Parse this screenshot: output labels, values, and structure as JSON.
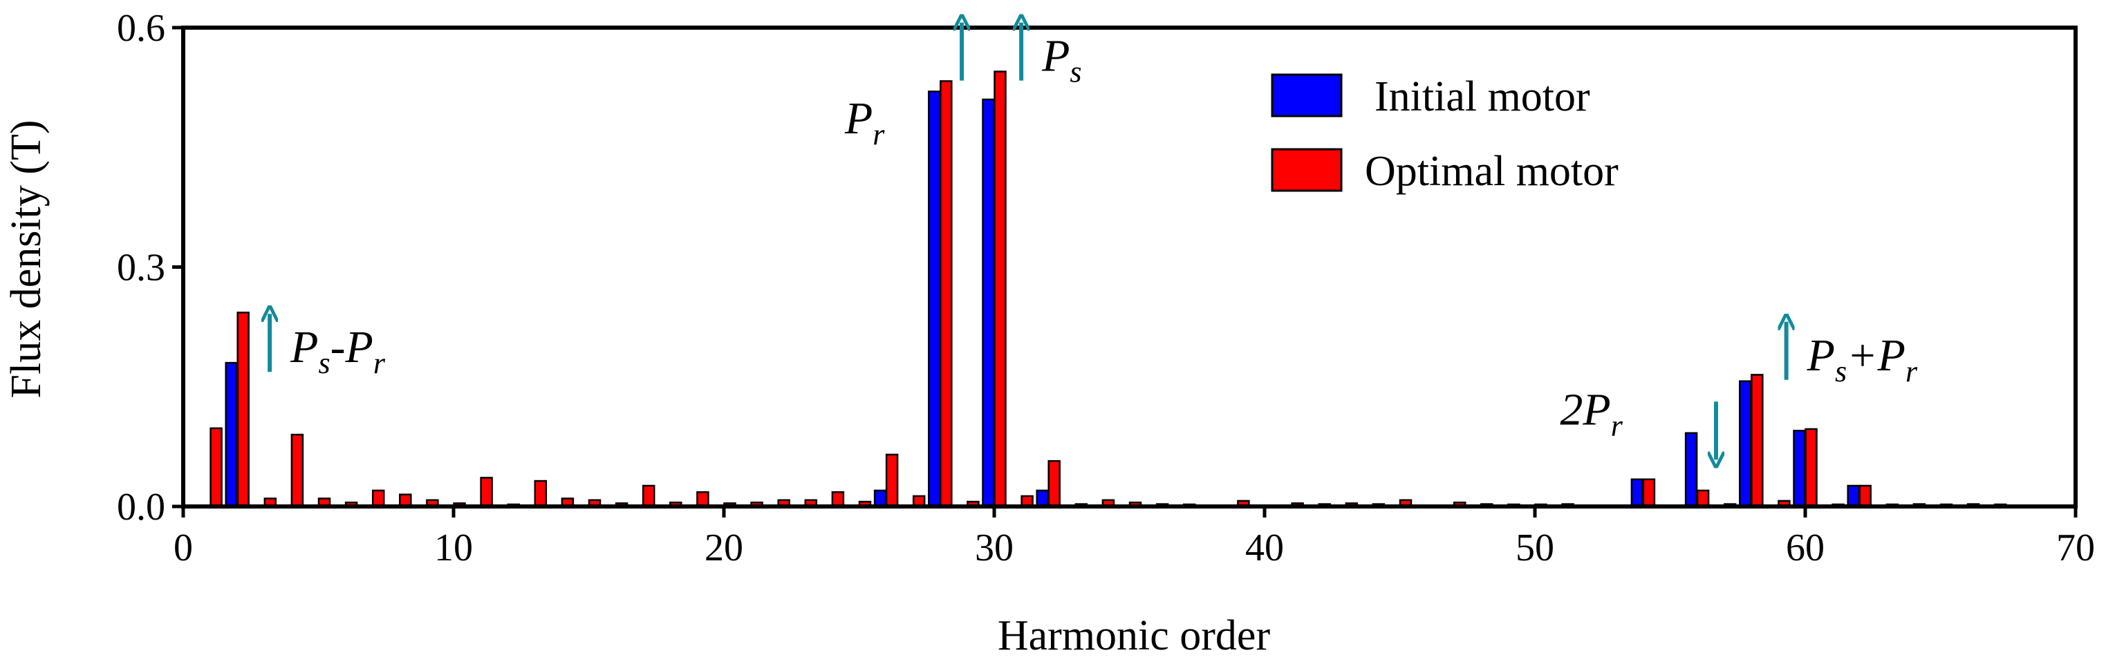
{
  "chart_data": {
    "type": "bar",
    "xlabel": "Harmonic order",
    "ylabel": "Flux density (T)",
    "xlim": [
      0,
      70
    ],
    "ylim": [
      0,
      0.6
    ],
    "xticks": [
      0,
      10,
      20,
      30,
      40,
      50,
      60,
      70
    ],
    "xtick_labels": [
      "0",
      "10",
      "20",
      "30",
      "40",
      "50",
      "60",
      "70"
    ],
    "yticks": [
      0.0,
      0.3,
      0.6
    ],
    "ytick_labels": [
      "0.0",
      "0.3",
      "0.6"
    ],
    "grid": false,
    "legend_position": "top-right",
    "series": [
      {
        "name": "Initial motor",
        "color": "#0000ff",
        "points": [
          {
            "x": 2,
            "y": 0.18
          },
          {
            "x": 26,
            "y": 0.02
          },
          {
            "x": 28,
            "y": 0.52
          },
          {
            "x": 30,
            "y": 0.51
          },
          {
            "x": 32,
            "y": 0.02
          },
          {
            "x": 54,
            "y": 0.034
          },
          {
            "x": 56,
            "y": 0.092
          },
          {
            "x": 58,
            "y": 0.157
          },
          {
            "x": 60,
            "y": 0.095
          },
          {
            "x": 62,
            "y": 0.026
          }
        ]
      },
      {
        "name": "Optimal motor",
        "color": "#ff0000",
        "points": [
          {
            "x": 1,
            "y": 0.098
          },
          {
            "x": 2,
            "y": 0.243
          },
          {
            "x": 3,
            "y": 0.01
          },
          {
            "x": 4,
            "y": 0.09
          },
          {
            "x": 5,
            "y": 0.01
          },
          {
            "x": 6,
            "y": 0.005
          },
          {
            "x": 7,
            "y": 0.02
          },
          {
            "x": 8,
            "y": 0.015
          },
          {
            "x": 9,
            "y": 0.008
          },
          {
            "x": 10,
            "y": 0.004
          },
          {
            "x": 11,
            "y": 0.036
          },
          {
            "x": 12,
            "y": 0.002
          },
          {
            "x": 13,
            "y": 0.032
          },
          {
            "x": 14,
            "y": 0.01
          },
          {
            "x": 15,
            "y": 0.008
          },
          {
            "x": 16,
            "y": 0.004
          },
          {
            "x": 17,
            "y": 0.026
          },
          {
            "x": 18,
            "y": 0.005
          },
          {
            "x": 19,
            "y": 0.018
          },
          {
            "x": 20,
            "y": 0.004
          },
          {
            "x": 21,
            "y": 0.005
          },
          {
            "x": 22,
            "y": 0.008
          },
          {
            "x": 23,
            "y": 0.008
          },
          {
            "x": 24,
            "y": 0.018
          },
          {
            "x": 25,
            "y": 0.006
          },
          {
            "x": 26,
            "y": 0.065
          },
          {
            "x": 27,
            "y": 0.013
          },
          {
            "x": 28,
            "y": 0.533
          },
          {
            "x": 29,
            "y": 0.006
          },
          {
            "x": 30,
            "y": 0.545
          },
          {
            "x": 31,
            "y": 0.013
          },
          {
            "x": 32,
            "y": 0.057
          },
          {
            "x": 33,
            "y": 0.003
          },
          {
            "x": 34,
            "y": 0.008
          },
          {
            "x": 35,
            "y": 0.005
          },
          {
            "x": 36,
            "y": 0.003
          },
          {
            "x": 37,
            "y": 0.002
          },
          {
            "x": 39,
            "y": 0.007
          },
          {
            "x": 41,
            "y": 0.004
          },
          {
            "x": 42,
            "y": 0.003
          },
          {
            "x": 43,
            "y": 0.004
          },
          {
            "x": 44,
            "y": 0.003
          },
          {
            "x": 45,
            "y": 0.008
          },
          {
            "x": 47,
            "y": 0.005
          },
          {
            "x": 48,
            "y": 0.003
          },
          {
            "x": 49,
            "y": 0.002
          },
          {
            "x": 50,
            "y": 0.002
          },
          {
            "x": 51,
            "y": 0.003
          },
          {
            "x": 54,
            "y": 0.034
          },
          {
            "x": 56,
            "y": 0.02
          },
          {
            "x": 57,
            "y": 0.003
          },
          {
            "x": 58,
            "y": 0.165
          },
          {
            "x": 59,
            "y": 0.007
          },
          {
            "x": 60,
            "y": 0.097
          },
          {
            "x": 61,
            "y": 0.002
          },
          {
            "x": 62,
            "y": 0.026
          },
          {
            "x": 63,
            "y": 0.002
          },
          {
            "x": 64,
            "y": 0.003
          },
          {
            "x": 65,
            "y": 0.002
          },
          {
            "x": 66,
            "y": 0.003
          },
          {
            "x": 67,
            "y": 0.002
          }
        ]
      }
    ],
    "annotations": [
      {
        "x": 3.2,
        "y": 0.205,
        "arrow": "up",
        "main": "P",
        "sub1": "s",
        "mid": "-P",
        "sub2": "r"
      },
      {
        "x": 26.2,
        "y": 0.485,
        "arrow": "none",
        "main": "P",
        "sub1": "r",
        "mid": "",
        "sub2": ""
      },
      {
        "x": 28.8,
        "y": 0.57,
        "arrow": "up",
        "main": "",
        "sub1": "",
        "mid": "",
        "sub2": ""
      },
      {
        "x": 31.0,
        "y": 0.57,
        "arrow": "up",
        "main": "P",
        "sub1": "s",
        "mid": "",
        "sub2": ""
      },
      {
        "x": 53.5,
        "y": 0.12,
        "arrow": "none",
        "main": "2P",
        "sub1": "r",
        "mid": "",
        "sub2": ""
      },
      {
        "x": 56.7,
        "y": 0.095,
        "arrow": "down",
        "main": "",
        "sub1": "",
        "mid": "",
        "sub2": ""
      },
      {
        "x": 59.3,
        "y": 0.195,
        "arrow": "up",
        "main": "P",
        "sub1": "s",
        "mid": "+P",
        "sub2": "r"
      }
    ]
  }
}
